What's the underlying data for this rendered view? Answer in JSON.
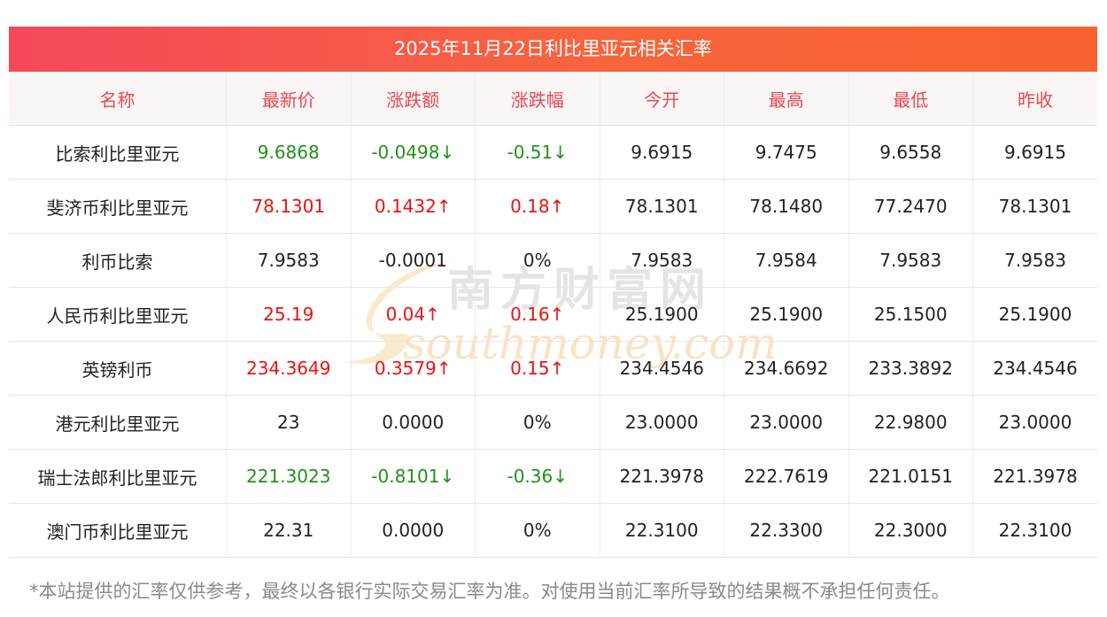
{
  "title": "2025年11月22日利比里亚元相关汇率",
  "columns": [
    "名称",
    "最新价",
    "涨跌额",
    "涨跌幅",
    "今开",
    "最高",
    "最低",
    "昨收"
  ],
  "rows": [
    {
      "name": "比索利比里亚元",
      "latest": "9.6868",
      "change": "-0.0498↓",
      "pct": "-0.51↓",
      "open": "9.6915",
      "high": "9.7475",
      "low": "9.6558",
      "prev": "9.6915",
      "trend": "down"
    },
    {
      "name": "斐济币利比里亚元",
      "latest": "78.1301",
      "change": "0.1432↑",
      "pct": "0.18↑",
      "open": "78.1301",
      "high": "78.1480",
      "low": "77.2470",
      "prev": "78.1301",
      "trend": "up"
    },
    {
      "name": "利币比索",
      "latest": "7.9583",
      "change": "-0.0001",
      "pct": "0%",
      "open": "7.9583",
      "high": "7.9584",
      "low": "7.9583",
      "prev": "7.9583",
      "trend": "flat"
    },
    {
      "name": "人民币利比里亚元",
      "latest": "25.19",
      "change": "0.04↑",
      "pct": "0.16↑",
      "open": "25.1900",
      "high": "25.1900",
      "low": "25.1500",
      "prev": "25.1900",
      "trend": "up"
    },
    {
      "name": "英镑利币",
      "latest": "234.3649",
      "change": "0.3579↑",
      "pct": "0.15↑",
      "open": "234.4546",
      "high": "234.6692",
      "low": "233.3892",
      "prev": "234.4546",
      "trend": "up"
    },
    {
      "name": "港元利比里亚元",
      "latest": "23",
      "change": "0.0000",
      "pct": "0%",
      "open": "23.0000",
      "high": "23.0000",
      "low": "22.9800",
      "prev": "23.0000",
      "trend": "flat"
    },
    {
      "name": "瑞士法郎利比里亚元",
      "latest": "221.3023",
      "change": "-0.8101↓",
      "pct": "-0.36↓",
      "open": "221.3978",
      "high": "222.7619",
      "low": "221.0151",
      "prev": "221.3978",
      "trend": "down"
    },
    {
      "name": "澳门币利比里亚元",
      "latest": "22.31",
      "change": "0.0000",
      "pct": "0%",
      "open": "22.3100",
      "high": "22.3300",
      "low": "22.3000",
      "prev": "22.3100",
      "trend": "flat"
    }
  ],
  "colors": {
    "up": "#ee1111",
    "down": "#22911a",
    "header_text": "#e8484f",
    "title_gradient_start": "#f5485a",
    "title_gradient_end": "#f8622f"
  },
  "watermark": {
    "cn": "南方财富网",
    "en": "southmoney.com"
  },
  "disclaimer": "*本站提供的汇率仅供参考，最终以各银行实际交易汇率为准。对使用当前汇率所导致的结果概不承担任何责任。"
}
